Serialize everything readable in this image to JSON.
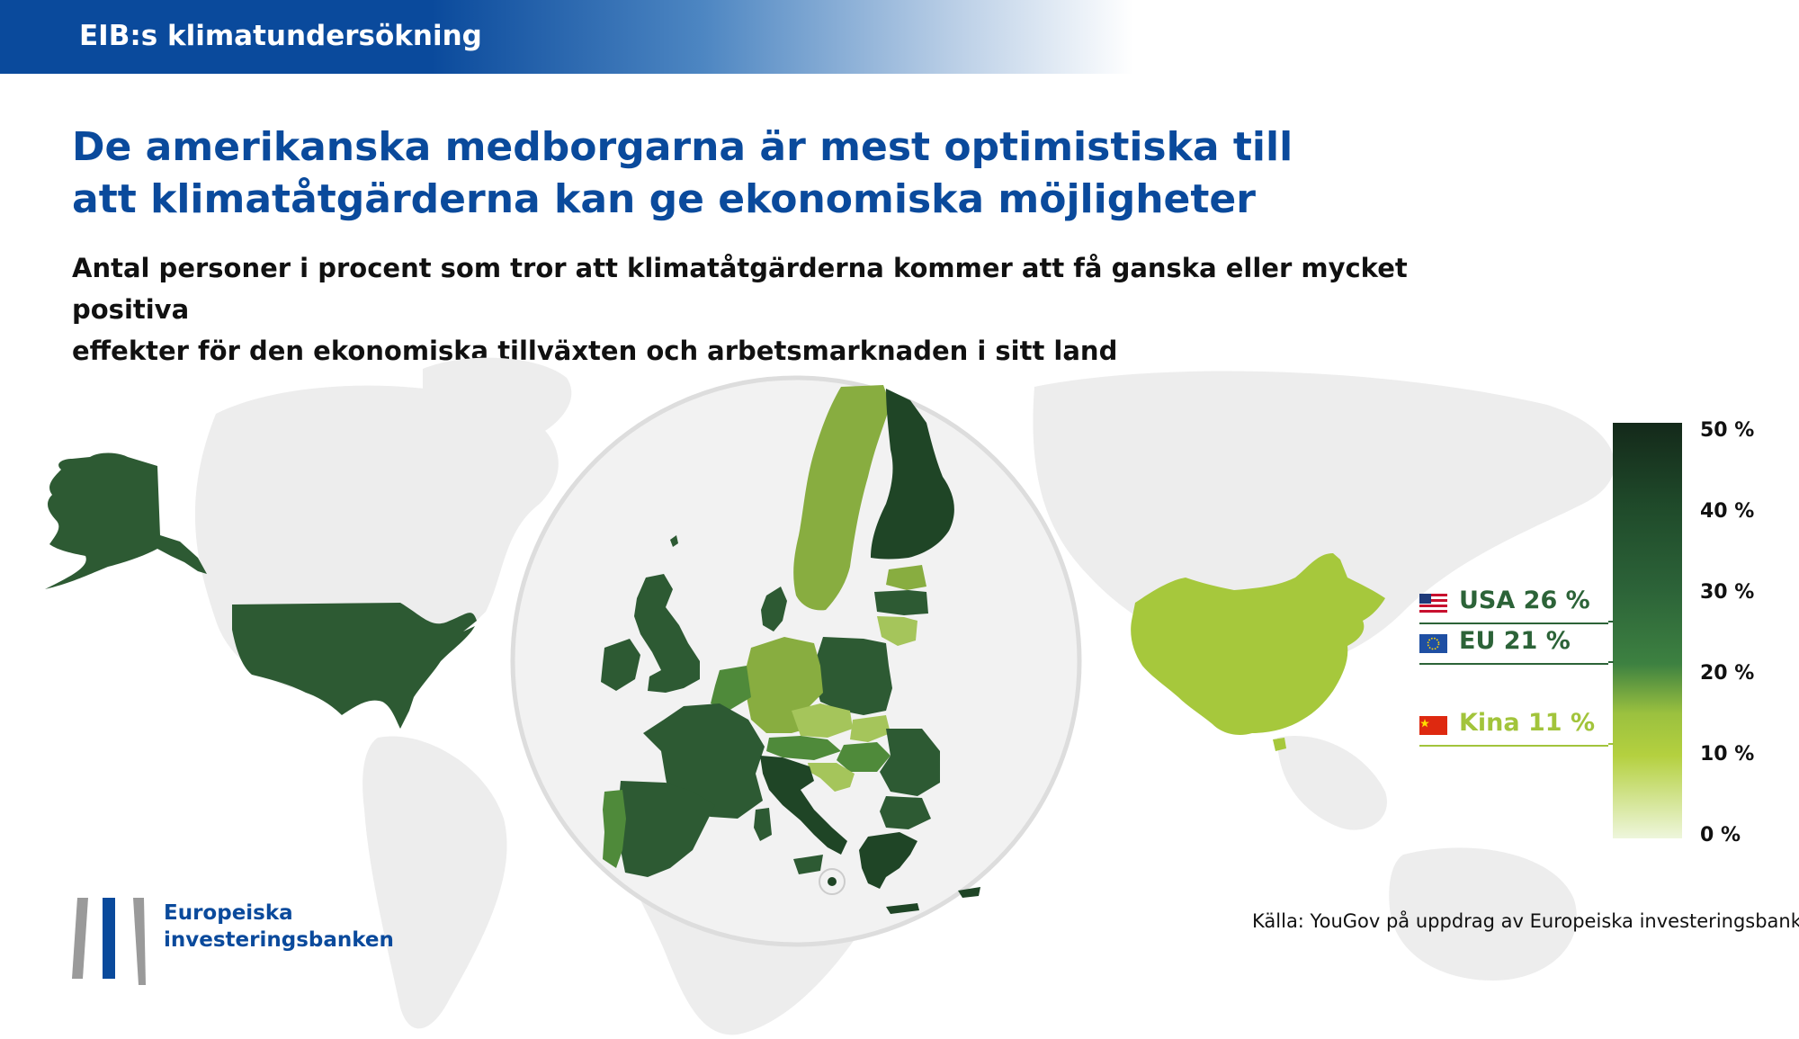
{
  "banner": {
    "title": "EIB:s klimatundersökning"
  },
  "headline": {
    "line1": "De amerikanska medborgarna är mest optimistiska till",
    "line2": "att klimatåtgärderna kan ge ekonomiska möjligheter"
  },
  "subtitle": {
    "line1": "Antal personer i procent som tror att klimatåtgärderna kommer att få ganska eller mycket positiva",
    "line2": "effekter för den ekonomiska tillväxten och arbetsmarknaden i sitt land"
  },
  "scale": {
    "ticks": [
      "50 %",
      "40 %",
      "30 %",
      "20 %",
      "10 %",
      "0 %"
    ],
    "min": 0,
    "max": 50
  },
  "legend": [
    {
      "label": "USA 26 %",
      "value": 26,
      "color": "#2c6338",
      "flag": "us-flag-icon"
    },
    {
      "label": "EU 21 %",
      "value": 21,
      "color": "#2c6338",
      "flag": "eu-flag-icon"
    },
    {
      "label": "Kina 11 %",
      "value": 11,
      "color": "#a2c43b",
      "flag": "china-flag-icon"
    }
  ],
  "map_colors": {
    "usa": "#2d5a33",
    "china": "#a6c83c",
    "eu_dark": "#2d5a33",
    "eu_mid": "#4f8a3a",
    "eu_light": "#88ad40",
    "eu_pale": "#a5c55b",
    "background_land": "#ededed"
  },
  "source": "Källa: YouGov på uppdrag av Europeiska investeringsbanken",
  "logo": {
    "line1": "Europeiska",
    "line2": "investeringsbanken"
  }
}
